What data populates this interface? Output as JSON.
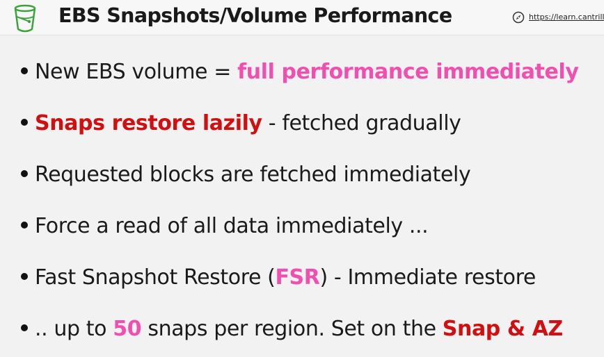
{
  "header": {
    "title": "EBS Snapshots/Volume Performance",
    "link": "https://learn.cantrill.io"
  },
  "colors": {
    "accent_pink": "#f04fb0",
    "accent_red": "#d01010",
    "text": "#1a1a1a",
    "background": "#f2f2f2",
    "icon_green": "#3aa33a"
  },
  "bullets": [
    {
      "a": "New EBS volume = ",
      "b": "full performance immediately"
    },
    {
      "a": "Snaps restore lazily",
      "b": " - fetched gradually"
    },
    {
      "a": "Requested blocks are fetched immediately"
    },
    {
      "a": "Force a read of all data immediately ..."
    },
    {
      "a": "Fast Snapshot Restore (",
      "b": "FSR",
      "c": ") - Immediate restore"
    },
    {
      "a": ".. up to ",
      "b": "50",
      "c": " snaps per region. Set on the ",
      "d": "Snap & AZ"
    }
  ]
}
